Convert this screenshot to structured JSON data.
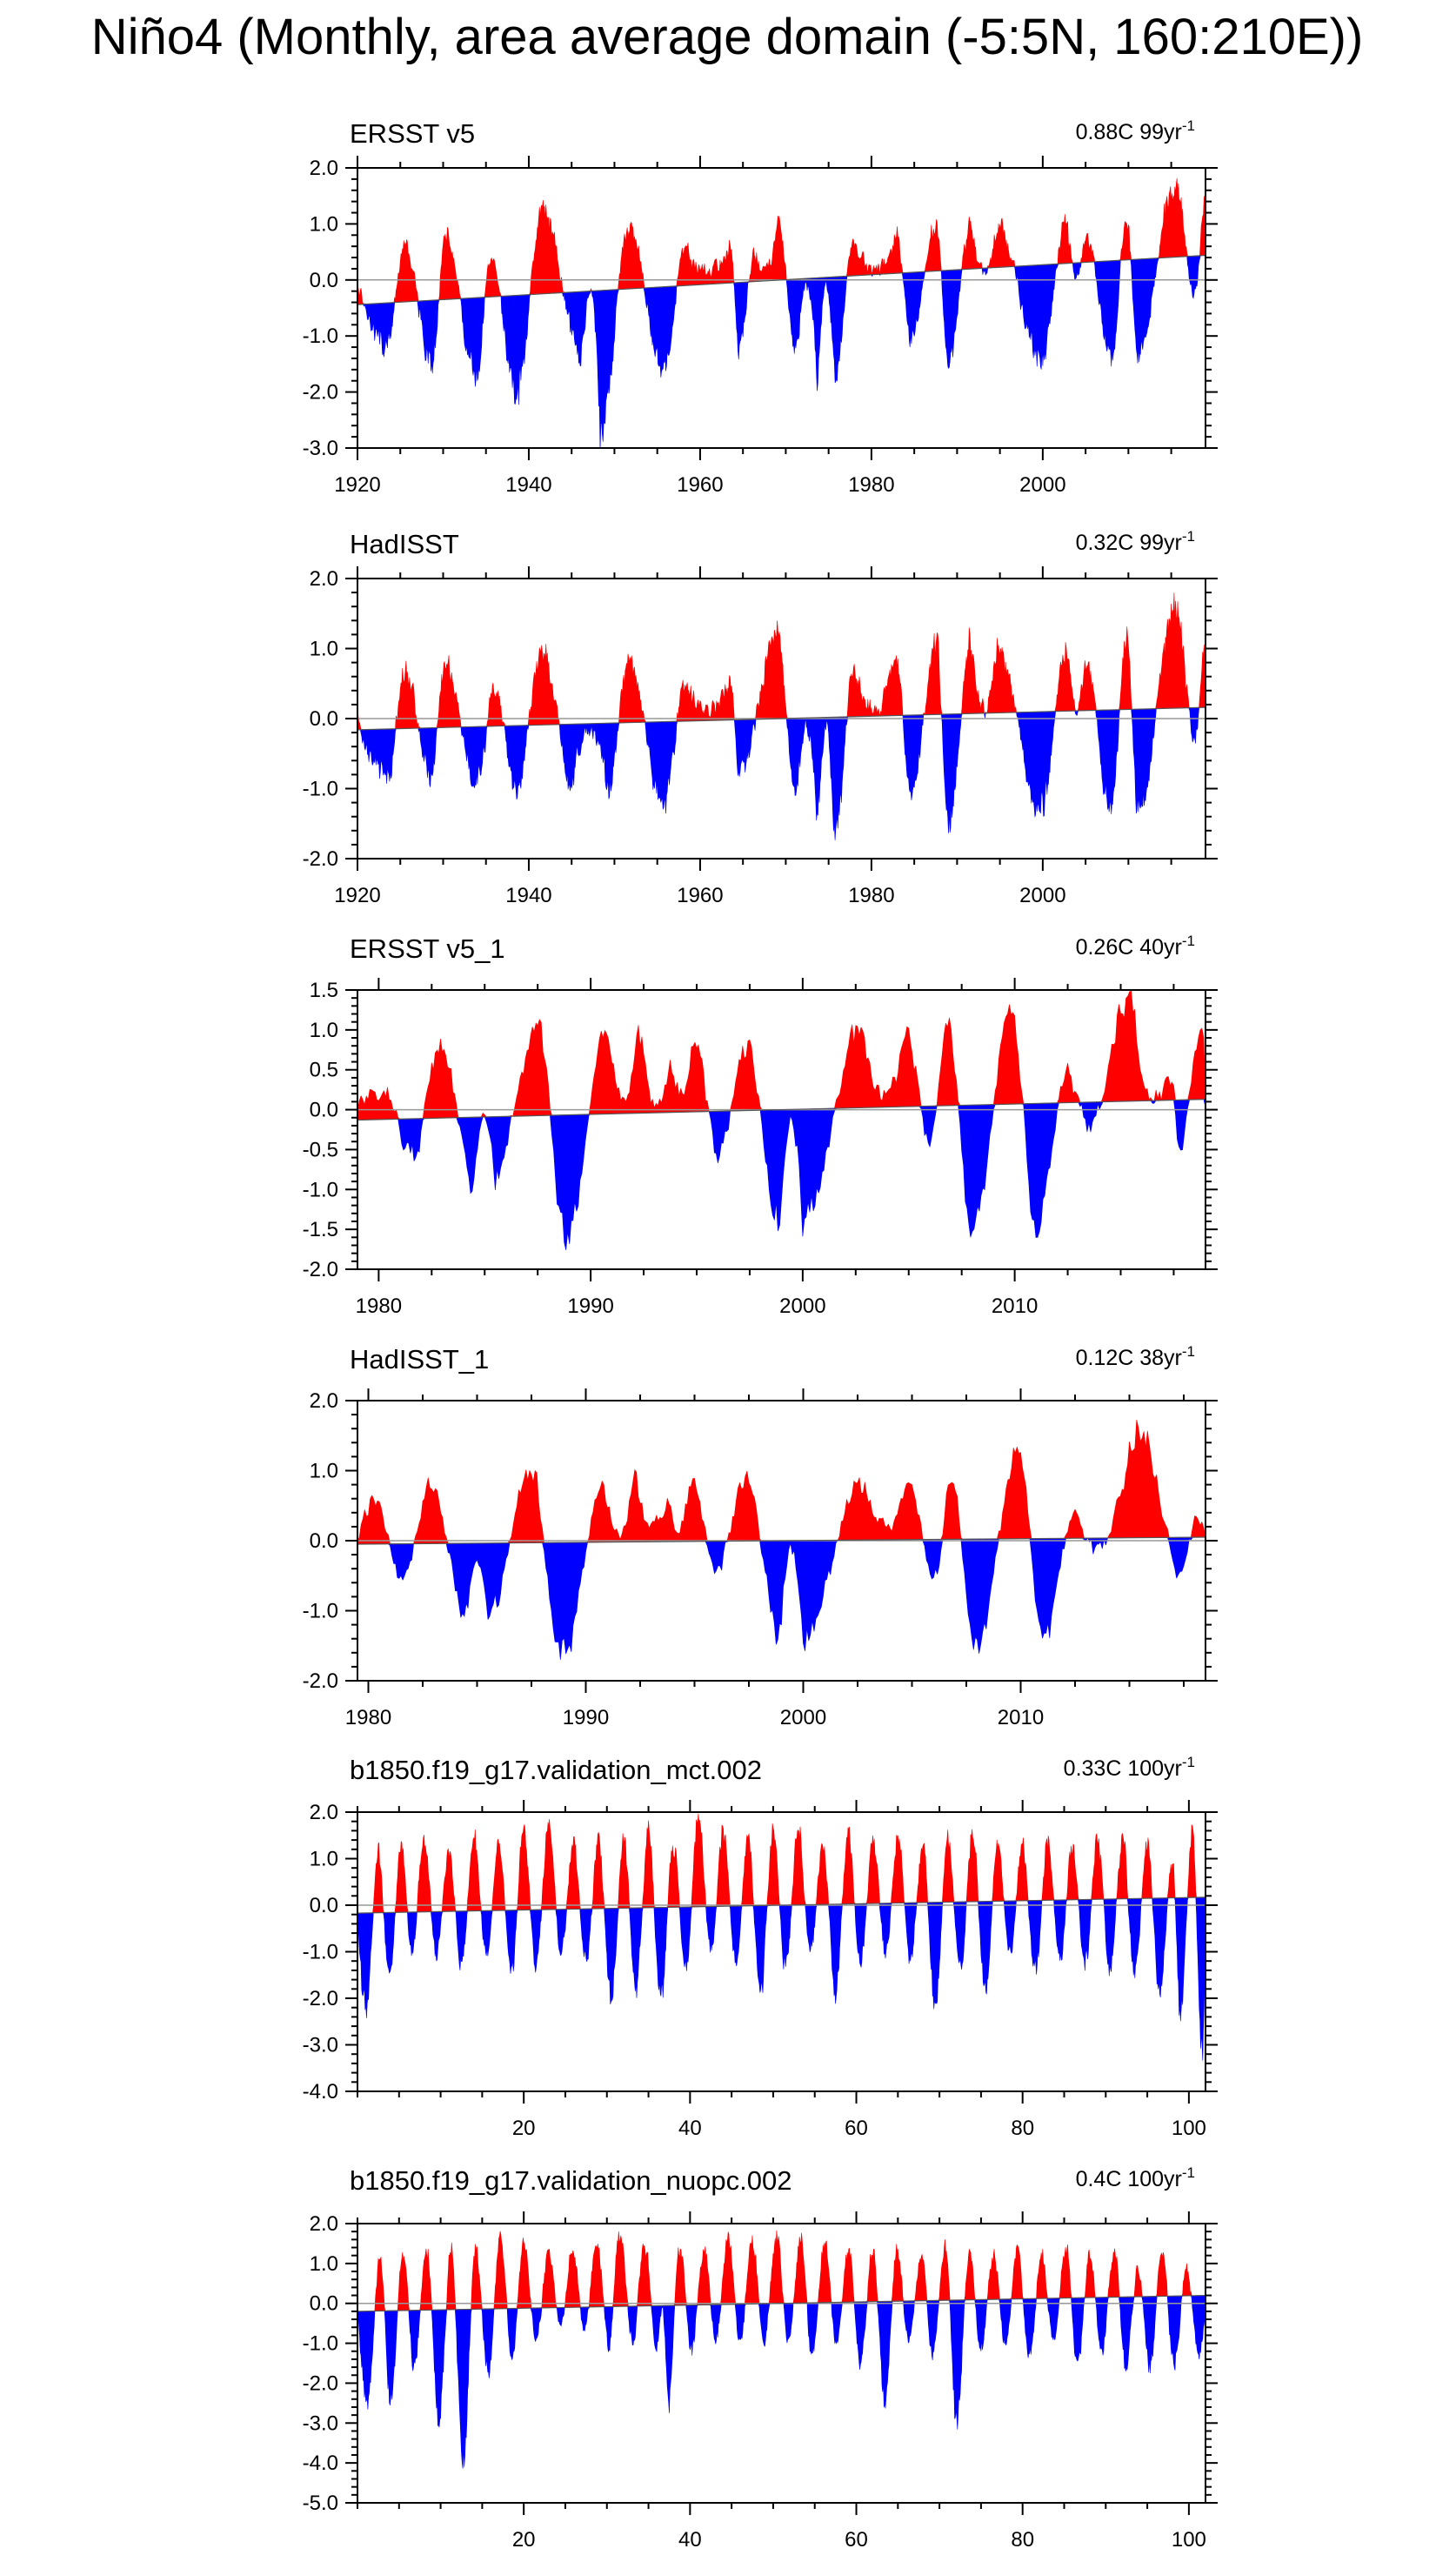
{
  "figure": {
    "title": "Niño4 (Monthly, area average domain (-5:5N, 160:210E))"
  },
  "colors": {
    "positive": "#ff0000",
    "negative": "#0000ff",
    "axis": "#000000",
    "zero_line": "#999999"
  },
  "chart_data": [
    {
      "type": "area",
      "title": "ERSST v5",
      "trend_label": "0.88C 99yr",
      "trend_sup": "-1",
      "x_range": [
        1920,
        2019
      ],
      "x_ticks": [
        1920,
        1940,
        1960,
        1980,
        2000
      ],
      "ylim": [
        -3,
        2
      ],
      "y_ticks": [
        -3,
        -2,
        -1,
        0,
        1,
        2
      ],
      "y_tick_labels": [
        "-3.0",
        "-2.0",
        "-1.0",
        "0.0",
        "1.0",
        "2.0"
      ],
      "trend": [
        -0.44,
        0.44
      ],
      "events": [
        [
          1923.4,
          -1.2
        ],
        [
          1925.5,
          0.6
        ],
        [
          1928.6,
          -1.5
        ],
        [
          1930.3,
          0.75
        ],
        [
          1933.9,
          -1.8
        ],
        [
          1935.5,
          0.3
        ],
        [
          1938.6,
          -2.0
        ],
        [
          1941.6,
          1.25
        ],
        [
          1946.1,
          -1.3
        ],
        [
          1948.3,
          -2.8
        ],
        [
          1951.7,
          0.9
        ],
        [
          1955.7,
          -1.6
        ],
        [
          1958.2,
          0.5
        ],
        [
          1963.5,
          0.6
        ],
        [
          1964.6,
          -1.2
        ],
        [
          1966.3,
          0.45
        ],
        [
          1969.0,
          1.05
        ],
        [
          1971.2,
          -1.2
        ],
        [
          1973.7,
          -1.8
        ],
        [
          1975.7,
          -1.7
        ],
        [
          1977.9,
          0.7
        ],
        [
          1982.9,
          0.8
        ],
        [
          1984.6,
          -1.1
        ],
        [
          1987.6,
          1.0
        ],
        [
          1989.0,
          -1.5
        ],
        [
          1991.6,
          1.0
        ],
        [
          1994.7,
          1.0
        ],
        [
          1999.7,
          -1.4
        ],
        [
          2002.8,
          1.0
        ],
        [
          2005.0,
          0.8
        ],
        [
          2008.0,
          -1.4
        ],
        [
          2009.8,
          1.1
        ],
        [
          2011.1,
          -1.3
        ],
        [
          2015.5,
          1.7
        ],
        [
          2017.7,
          -0.3
        ],
        [
          2018.9,
          1.3
        ]
      ]
    },
    {
      "type": "area",
      "title": "HadISST",
      "trend_label": "0.32C 99yr",
      "trend_sup": "-1",
      "x_range": [
        1920,
        2019
      ],
      "x_ticks": [
        1920,
        1940,
        1960,
        1980,
        2000
      ],
      "ylim": [
        -2,
        2
      ],
      "y_ticks": [
        -2,
        -1,
        0,
        1,
        2
      ],
      "y_tick_labels": [
        "-2.0",
        "-1.0",
        "0.0",
        "1.0",
        "2.0"
      ],
      "trend": [
        -0.16,
        0.16
      ],
      "events": [
        [
          1923.5,
          -0.8
        ],
        [
          1925.5,
          0.7
        ],
        [
          1928.6,
          -0.8
        ],
        [
          1930.3,
          0.8
        ],
        [
          1933.9,
          -1.0
        ],
        [
          1936.0,
          0.4
        ],
        [
          1938.6,
          -1.0
        ],
        [
          1941.6,
          1.0
        ],
        [
          1945.0,
          -0.9
        ],
        [
          1949.2,
          -1.0
        ],
        [
          1951.7,
          0.8
        ],
        [
          1955.7,
          -1.2
        ],
        [
          1958.2,
          0.4
        ],
        [
          1963.5,
          0.6
        ],
        [
          1964.6,
          -0.8
        ],
        [
          1969.0,
          1.2
        ],
        [
          1971.2,
          -1.0
        ],
        [
          1973.7,
          -1.5
        ],
        [
          1975.7,
          -1.8
        ],
        [
          1977.9,
          0.7
        ],
        [
          1982.9,
          0.9
        ],
        [
          1984.6,
          -1.0
        ],
        [
          1987.6,
          1.0
        ],
        [
          1989.0,
          -1.5
        ],
        [
          1991.6,
          1.1
        ],
        [
          1994.7,
          1.0
        ],
        [
          1999.7,
          -1.3
        ],
        [
          2002.8,
          1.0
        ],
        [
          2005.0,
          0.8
        ],
        [
          2008.0,
          -1.3
        ],
        [
          2009.8,
          1.1
        ],
        [
          2011.1,
          -1.3
        ],
        [
          2015.5,
          1.65
        ],
        [
          2017.7,
          -0.3
        ],
        [
          2018.9,
          1.0
        ]
      ]
    },
    {
      "type": "area",
      "title": "ERSST v5_1",
      "trend_label": "0.26C 40yr",
      "trend_sup": "-1",
      "x_range": [
        1979,
        2019
      ],
      "x_ticks": [
        1980,
        1990,
        2000,
        2010
      ],
      "ylim": [
        -2,
        1.5
      ],
      "y_ticks": [
        -2,
        -1.5,
        -1,
        -0.5,
        0,
        0.5,
        1,
        1.5
      ],
      "y_tick_labels": [
        "-2.0",
        "-1.5",
        "-1.0",
        "-0.5",
        "0.0",
        "0.5",
        "1.0",
        "1.5"
      ],
      "trend": [
        -0.13,
        0.13
      ],
      "events": [
        [
          1979.3,
          0.2
        ],
        [
          1980.2,
          0.35
        ],
        [
          1981.6,
          -0.6
        ],
        [
          1982.9,
          0.75
        ],
        [
          1984.5,
          -0.9
        ],
        [
          1985.5,
          -0.8
        ],
        [
          1987.5,
          1.0
        ],
        [
          1988.9,
          -1.65
        ],
        [
          1990.8,
          0.9
        ],
        [
          1992.3,
          1.05
        ],
        [
          1993.8,
          0.6
        ],
        [
          1994.8,
          0.95
        ],
        [
          1996.0,
          -0.5
        ],
        [
          1997.4,
          0.7
        ],
        [
          1998.9,
          -1.5
        ],
        [
          2000.0,
          -1.4
        ],
        [
          2002.8,
          1.0
        ],
        [
          2004.9,
          0.9
        ],
        [
          2006.0,
          -0.4
        ],
        [
          2006.8,
          1.0
        ],
        [
          2008.0,
          -1.45
        ],
        [
          2009.9,
          1.2
        ],
        [
          2011.0,
          -1.5
        ],
        [
          2012.5,
          0.4
        ],
        [
          2013.5,
          -0.2
        ],
        [
          2015.5,
          1.45
        ],
        [
          2017.4,
          0.25
        ],
        [
          2017.8,
          -0.4
        ],
        [
          2018.9,
          1.0
        ]
      ]
    },
    {
      "type": "area",
      "title": "HadISST_1",
      "trend_label": "0.12C 38yr",
      "trend_sup": "-1",
      "x_range": [
        1979.5,
        2018.5
      ],
      "x_ticks": [
        1980,
        1990,
        2000,
        2010
      ],
      "ylim": [
        -2,
        2
      ],
      "y_ticks": [
        -2,
        -1,
        0,
        1,
        2
      ],
      "y_tick_labels": [
        "-2.0",
        "-1.0",
        "0.0",
        "1.0",
        "2.0"
      ],
      "trend": [
        -0.05,
        0.05
      ],
      "events": [
        [
          1980.3,
          0.55
        ],
        [
          1981.6,
          -0.5
        ],
        [
          1982.9,
          0.8
        ],
        [
          1984.5,
          -1.0
        ],
        [
          1985.5,
          -1.1
        ],
        [
          1987.5,
          0.95
        ],
        [
          1988.9,
          -1.7
        ],
        [
          1990.8,
          0.8
        ],
        [
          1992.3,
          0.9
        ],
        [
          1993.8,
          0.7
        ],
        [
          1994.8,
          0.9
        ],
        [
          1996.0,
          -0.4
        ],
        [
          1997.4,
          0.85
        ],
        [
          1998.9,
          -1.3
        ],
        [
          2000.0,
          -1.4
        ],
        [
          2002.8,
          0.9
        ],
        [
          2004.9,
          0.85
        ],
        [
          2006.0,
          -0.6
        ],
        [
          2006.8,
          0.85
        ],
        [
          2008.0,
          -1.5
        ],
        [
          2009.9,
          1.3
        ],
        [
          2011.0,
          -1.4
        ],
        [
          2012.5,
          0.35
        ],
        [
          2013.5,
          -0.2
        ],
        [
          2015.6,
          1.5
        ],
        [
          2017.3,
          -0.35
        ],
        [
          2018.2,
          0.3
        ]
      ]
    },
    {
      "type": "area",
      "title": "b1850.f19_g17.validation_mct.002",
      "trend_label": "0.33C 100yr",
      "trend_sup": "-1",
      "x_range": [
        0,
        102
      ],
      "x_ticks": [
        20,
        40,
        60,
        80,
        100
      ],
      "ylim": [
        -4,
        2
      ],
      "y_ticks": [
        -4,
        -3,
        -2,
        -1,
        0,
        1,
        2
      ],
      "y_tick_labels": [
        "-4.0",
        "-3.0",
        "-2.0",
        "-1.0",
        "0.0",
        "1.0",
        "2.0"
      ],
      "trend": [
        -0.17,
        0.17
      ],
      "events": [
        [
          1.0,
          -2.2
        ],
        [
          2.5,
          1.1
        ],
        [
          3.8,
          -1.5
        ],
        [
          5.3,
          1.3
        ],
        [
          6.5,
          -1.0
        ],
        [
          8.0,
          1.4
        ],
        [
          9.5,
          -1.0
        ],
        [
          11.0,
          1.2
        ],
        [
          12.5,
          -1.3
        ],
        [
          14.0,
          1.5
        ],
        [
          15.5,
          -1.0
        ],
        [
          17.0,
          1.2
        ],
        [
          18.5,
          -1.5
        ],
        [
          20.0,
          1.6
        ],
        [
          21.5,
          -1.3
        ],
        [
          23.0,
          1.7
        ],
        [
          24.5,
          -1.0
        ],
        [
          26.0,
          1.3
        ],
        [
          27.5,
          -1.2
        ],
        [
          29.0,
          1.4
        ],
        [
          30.5,
          -2.1
        ],
        [
          32.0,
          1.4
        ],
        [
          33.5,
          -1.8
        ],
        [
          35.0,
          1.6
        ],
        [
          36.5,
          -2.0
        ],
        [
          38.0,
          1.3
        ],
        [
          39.5,
          -1.4
        ],
        [
          41.0,
          1.8
        ],
        [
          42.5,
          -1.0
        ],
        [
          44.0,
          1.5
        ],
        [
          45.5,
          -1.2
        ],
        [
          47.0,
          1.4
        ],
        [
          48.5,
          -1.8
        ],
        [
          50.0,
          1.6
        ],
        [
          51.5,
          -1.3
        ],
        [
          53.0,
          1.6
        ],
        [
          54.5,
          -1.0
        ],
        [
          56.0,
          1.2
        ],
        [
          57.5,
          -1.8
        ],
        [
          59.0,
          1.5
        ],
        [
          60.5,
          -1.2
        ],
        [
          62.0,
          1.3
        ],
        [
          63.5,
          -1.0
        ],
        [
          65.0,
          1.4
        ],
        [
          66.5,
          -1.1
        ],
        [
          68.0,
          1.3
        ],
        [
          69.5,
          -2.2
        ],
        [
          71.0,
          1.4
        ],
        [
          72.5,
          -1.4
        ],
        [
          74.0,
          1.5
        ],
        [
          75.5,
          -1.8
        ],
        [
          77.0,
          1.2
        ],
        [
          78.5,
          -1.0
        ],
        [
          80.0,
          1.3
        ],
        [
          81.5,
          -1.5
        ],
        [
          83.0,
          1.4
        ],
        [
          84.5,
          -1.1
        ],
        [
          86.0,
          1.2
        ],
        [
          87.5,
          -1.3
        ],
        [
          89.0,
          1.5
        ],
        [
          90.5,
          -1.4
        ],
        [
          92.0,
          1.4
        ],
        [
          93.5,
          -1.5
        ],
        [
          95.0,
          1.3
        ],
        [
          96.5,
          -1.8
        ],
        [
          98.0,
          1.0
        ],
        [
          99.0,
          -2.3
        ],
        [
          100.4,
          1.6
        ],
        [
          101.6,
          -3.1
        ]
      ]
    },
    {
      "type": "area",
      "title": "b1850.f19_g17.validation_nuopc.002",
      "trend_label": "0.4C 100yr",
      "trend_sup": "-1",
      "x_range": [
        0,
        102
      ],
      "x_ticks": [
        20,
        40,
        60,
        80,
        100
      ],
      "ylim": [
        -5,
        2
      ],
      "y_ticks": [
        -5,
        -4,
        -3,
        -2,
        -1,
        0,
        1,
        2
      ],
      "y_tick_labels": [
        "-5.0",
        "-4.0",
        "-3.0",
        "-2.0",
        "-1.0",
        "0.0",
        "1.0",
        "2.0"
      ],
      "trend": [
        -0.2,
        0.2
      ],
      "events": [
        [
          1.2,
          -2.5
        ],
        [
          2.7,
          1.1
        ],
        [
          4.0,
          -2.4
        ],
        [
          5.5,
          1.3
        ],
        [
          6.8,
          -1.6
        ],
        [
          8.3,
          1.4
        ],
        [
          9.8,
          -2.8
        ],
        [
          11.3,
          1.3
        ],
        [
          12.7,
          -4.0
        ],
        [
          14.2,
          1.4
        ],
        [
          15.7,
          -1.8
        ],
        [
          17.2,
          1.6
        ],
        [
          18.6,
          -1.4
        ],
        [
          20.0,
          1.5
        ],
        [
          21.5,
          -0.9
        ],
        [
          23.0,
          1.3
        ],
        [
          24.4,
          -0.6
        ],
        [
          25.9,
          1.4
        ],
        [
          27.3,
          -0.7
        ],
        [
          28.8,
          1.5
        ],
        [
          30.2,
          -1.0
        ],
        [
          31.6,
          1.8
        ],
        [
          33.1,
          -1.0
        ],
        [
          34.5,
          1.5
        ],
        [
          36.0,
          -1.1
        ],
        [
          37.3,
          -2.6
        ],
        [
          38.8,
          1.4
        ],
        [
          40.2,
          -1.2
        ],
        [
          41.7,
          1.4
        ],
        [
          43.1,
          -0.9
        ],
        [
          44.6,
          1.6
        ],
        [
          46.0,
          -1.0
        ],
        [
          47.5,
          1.6
        ],
        [
          48.9,
          -1.0
        ],
        [
          50.4,
          1.7
        ],
        [
          51.8,
          -1.0
        ],
        [
          53.3,
          1.6
        ],
        [
          54.7,
          -1.4
        ],
        [
          56.2,
          1.5
        ],
        [
          57.6,
          -1.0
        ],
        [
          59.1,
          1.4
        ],
        [
          60.5,
          -1.4
        ],
        [
          62.0,
          1.3
        ],
        [
          63.4,
          -2.4
        ],
        [
          64.9,
          1.4
        ],
        [
          66.3,
          -1.0
        ],
        [
          67.8,
          1.2
        ],
        [
          69.2,
          -1.3
        ],
        [
          70.7,
          1.4
        ],
        [
          72.1,
          -2.9
        ],
        [
          73.6,
          1.3
        ],
        [
          75.0,
          -1.2
        ],
        [
          76.5,
          1.2
        ],
        [
          77.9,
          -1.0
        ],
        [
          79.4,
          1.3
        ],
        [
          80.8,
          -1.4
        ],
        [
          82.3,
          1.2
        ],
        [
          83.7,
          -0.9
        ],
        [
          85.2,
          1.4
        ],
        [
          86.6,
          -1.5
        ],
        [
          88.1,
          1.2
        ],
        [
          89.5,
          -1.2
        ],
        [
          91.0,
          1.3
        ],
        [
          92.4,
          -1.5
        ],
        [
          93.9,
          0.9
        ],
        [
          95.3,
          -1.6
        ],
        [
          96.8,
          1.3
        ],
        [
          98.2,
          -1.6
        ],
        [
          99.7,
          0.9
        ],
        [
          101.2,
          -1.3
        ]
      ]
    }
  ]
}
